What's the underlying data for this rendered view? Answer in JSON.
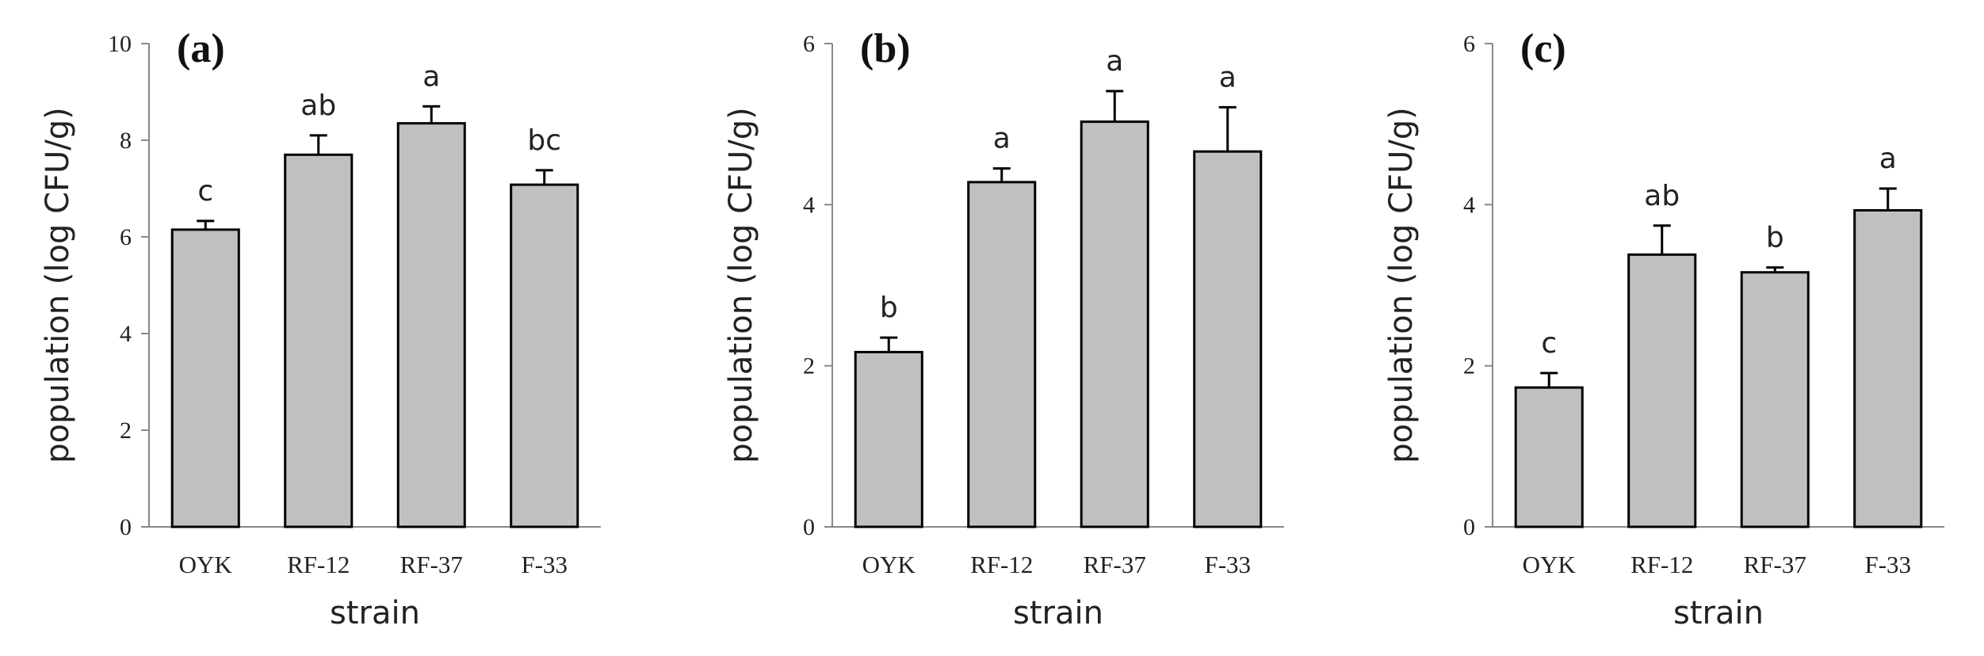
{
  "chart_data": [
    {
      "type": "bar",
      "panel_label": "(a)",
      "categories": [
        "OYK",
        "RF-12",
        "RF-37",
        "F-33"
      ],
      "values": [
        6.15,
        7.7,
        8.35,
        7.08
      ],
      "errors": [
        0.18,
        0.4,
        0.35,
        0.3
      ],
      "significance": [
        "c",
        "ab",
        "a",
        "bc"
      ],
      "xlabel": "strain",
      "ylabel": "population (log CFU/g)",
      "ylim": [
        0,
        10
      ],
      "yticks": [
        0,
        2,
        4,
        6,
        8,
        10
      ],
      "bar_color": "#c0c0c0",
      "grid": false
    },
    {
      "type": "bar",
      "panel_label": "(b)",
      "categories": [
        "OYK",
        "RF-12",
        "RF-37",
        "F-33"
      ],
      "values": [
        2.17,
        4.28,
        5.03,
        4.66
      ],
      "errors": [
        0.18,
        0.17,
        0.38,
        0.55
      ],
      "significance": [
        "b",
        "a",
        "a",
        "a"
      ],
      "xlabel": "strain",
      "ylabel": "population (log CFU/g)",
      "ylim": [
        0,
        6
      ],
      "yticks": [
        0,
        2,
        4,
        6
      ],
      "bar_color": "#c0c0c0",
      "grid": false
    },
    {
      "type": "bar",
      "panel_label": "(c)",
      "categories": [
        "OYK",
        "RF-12",
        "RF-37",
        "F-33"
      ],
      "values": [
        1.73,
        3.38,
        3.16,
        3.93
      ],
      "errors": [
        0.18,
        0.36,
        0.06,
        0.27
      ],
      "significance": [
        "c",
        "ab",
        "b",
        "a"
      ],
      "xlabel": "strain",
      "ylabel": "population (log CFU/g)",
      "ylim": [
        0,
        6
      ],
      "yticks": [
        0,
        2,
        4,
        6
      ],
      "bar_color": "#c0c0c0",
      "grid": false
    }
  ]
}
